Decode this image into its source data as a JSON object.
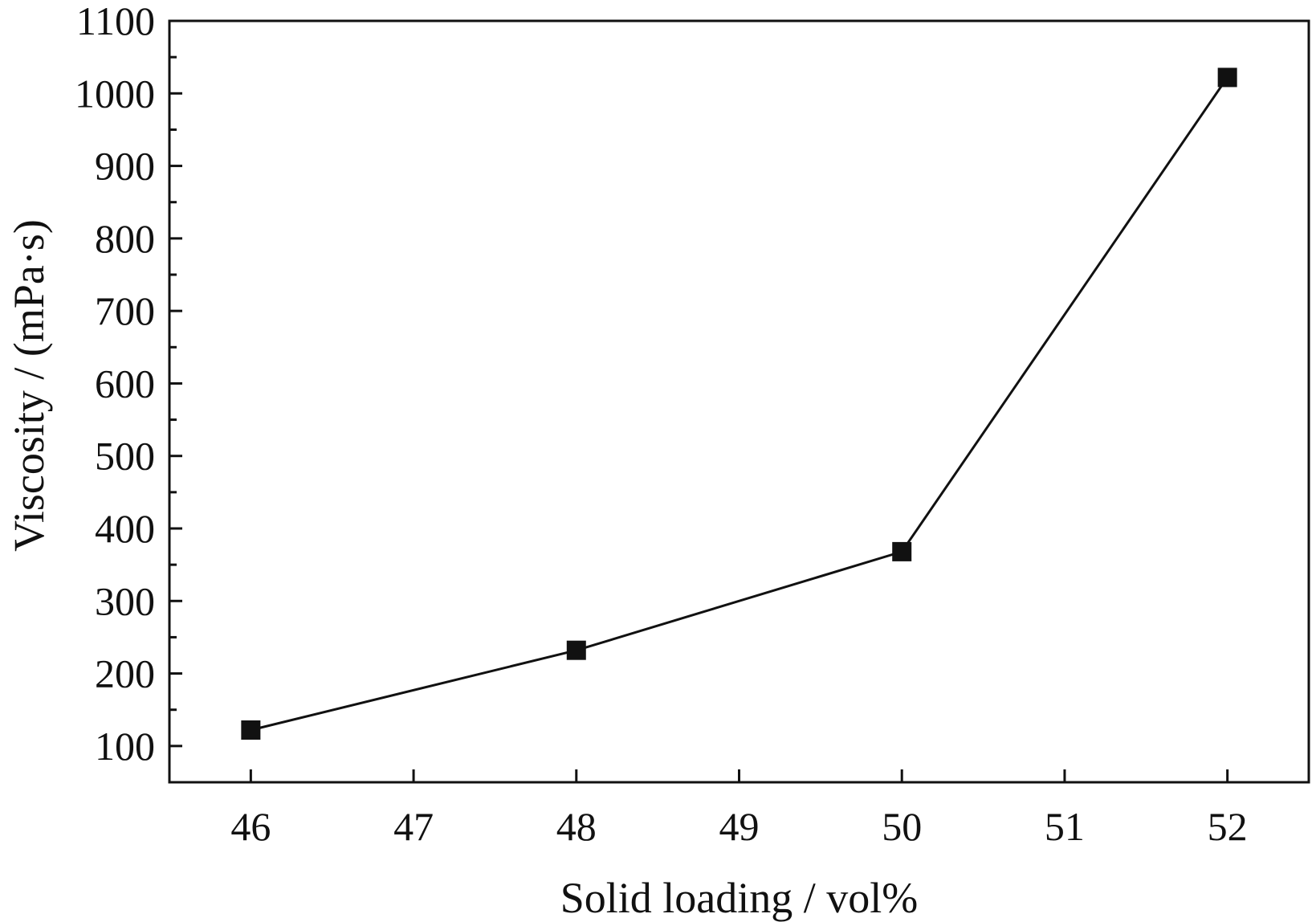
{
  "chart_data": {
    "type": "line",
    "title": "",
    "xlabel": "Solid loading / vol%",
    "ylabel": "Viscosity / (mPa·s)",
    "x_ticks": [
      46,
      47,
      48,
      49,
      50,
      51,
      52
    ],
    "y_ticks": [
      100,
      200,
      300,
      400,
      500,
      600,
      700,
      800,
      900,
      1000,
      1100
    ],
    "xlim": [
      45.5,
      52.5
    ],
    "ylim": [
      50,
      1100
    ],
    "grid": false,
    "legend": "none",
    "marker": "square",
    "series": [
      {
        "x": [
          46,
          48,
          50,
          52
        ],
        "values": [
          122,
          232,
          368,
          1022
        ],
        "color": "#111111"
      }
    ]
  }
}
